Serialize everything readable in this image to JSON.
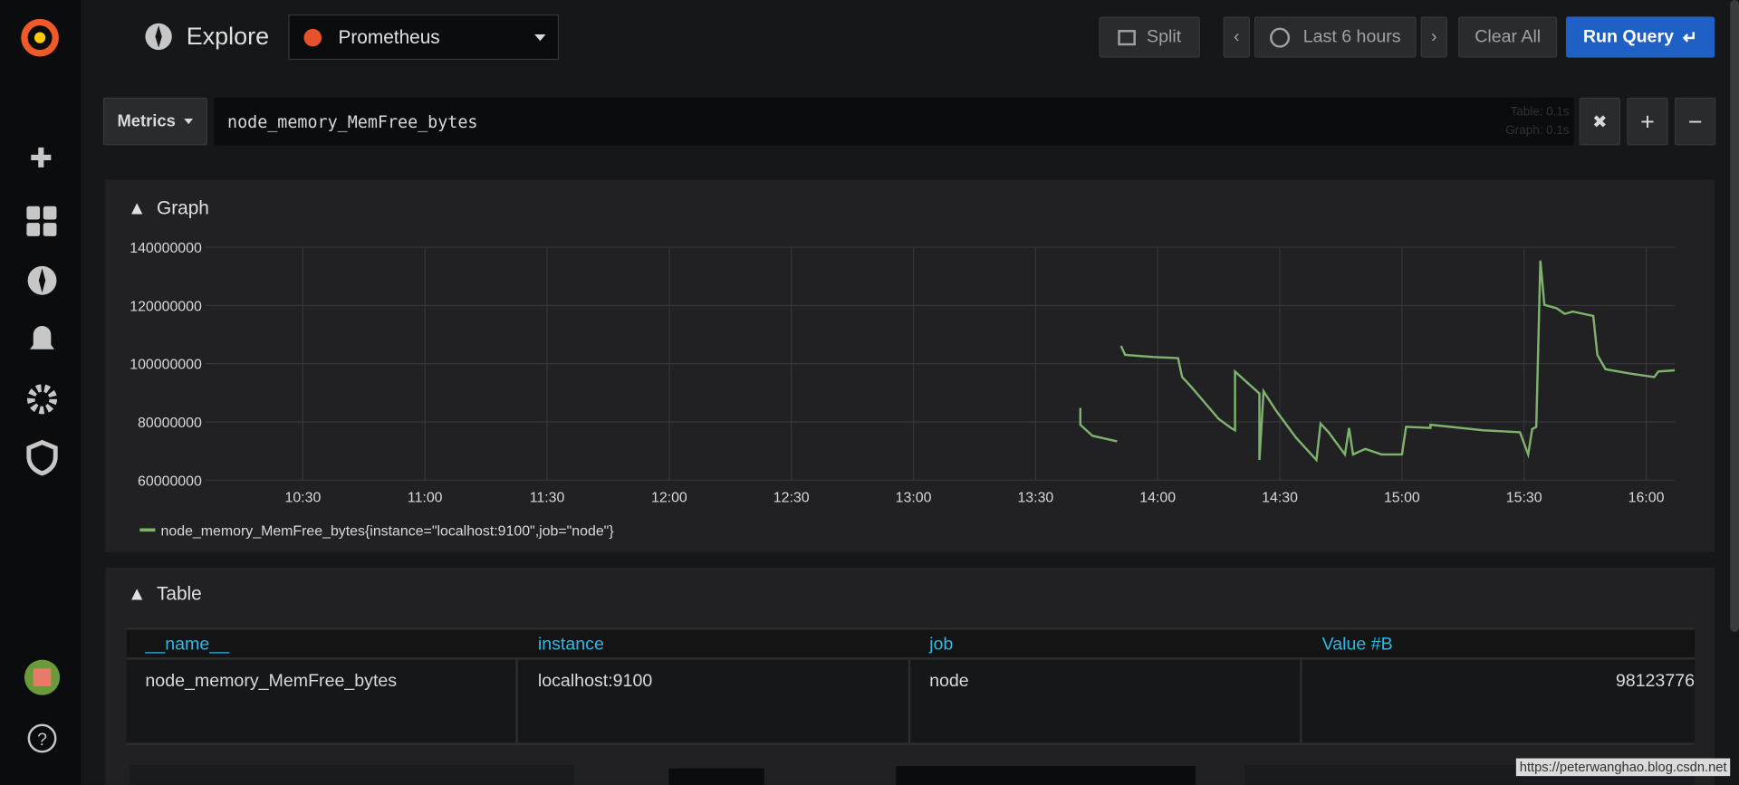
{
  "nav": {
    "title": "Explore",
    "datasource": "Prometheus",
    "split": "Split",
    "time_range": "Last 6 hours",
    "clear_all": "Clear All",
    "run_query": "Run Query"
  },
  "query": {
    "mode": "Metrics",
    "expression": "node_memory_MemFree_bytes",
    "timings": [
      "Table: 0.1s",
      "Graph: 0.1s"
    ]
  },
  "graph": {
    "heading": "Graph",
    "chart_data": {
      "type": "line",
      "x": [
        "13:41",
        "13:41",
        "13:44",
        "13:50",
        "13:51",
        "13:51",
        "13:52",
        "13:59",
        "14:05",
        "14:06",
        "14:08",
        "14:15",
        "14:18",
        "14:19",
        "14:19",
        "14:25",
        "14:25",
        "14:26",
        "14:29",
        "14:34",
        "14:39",
        "14:40",
        "14:42",
        "14:46",
        "14:47",
        "14:48",
        "14:51",
        "14:55",
        "15:00",
        "15:01",
        "15:07",
        "15:07",
        "15:20",
        "15:29",
        "15:31",
        "15:32",
        "15:33",
        "15:34",
        "15:35",
        "15:38",
        "15:40",
        "15:42",
        "15:47",
        "15:48",
        "15:50",
        "15:56",
        "16:02",
        "16:03",
        "16:07"
      ],
      "series": [
        {
          "name": "node_memory_MemFree_bytes{instance=\"localhost:9100\",job=\"node\"}",
          "color": "#7eb26d",
          "values": [
            84800000,
            79000000,
            75200000,
            73300000,
            null,
            106100000,
            103000000,
            102300000,
            101900000,
            95400000,
            92400000,
            81000000,
            77900000,
            77100000,
            97300000,
            89700000,
            66900000,
            90500000,
            84000000,
            74500000,
            66900000,
            79400000,
            76400000,
            68800000,
            77900000,
            68800000,
            70700000,
            68800000,
            68800000,
            78300000,
            77900000,
            79000000,
            77100000,
            76400000,
            68800000,
            77500000,
            78300000,
            135400000,
            120200000,
            119000000,
            117100000,
            117900000,
            116400000,
            103000000,
            98100000,
            96600000,
            95400000,
            97300000,
            97700000
          ]
        }
      ],
      "xlim": [
        "10:06",
        "16:07"
      ],
      "xticks": [
        "10:30",
        "11:00",
        "11:30",
        "12:00",
        "12:30",
        "13:00",
        "13:30",
        "14:00",
        "14:30",
        "15:00",
        "15:30",
        "16:00"
      ],
      "ylim": [
        60000000,
        140000000
      ],
      "yticks": [
        60000000,
        80000000,
        100000000,
        120000000,
        140000000
      ],
      "grid": true
    }
  },
  "table": {
    "heading": "Table",
    "columns": [
      "__name__",
      "instance",
      "job",
      "Value #B"
    ],
    "rows": [
      [
        "node_memory_MemFree_bytes",
        "localhost:9100",
        "node",
        98123776
      ]
    ]
  },
  "watermark": "https://peterwanghao.blog.csdn.net"
}
